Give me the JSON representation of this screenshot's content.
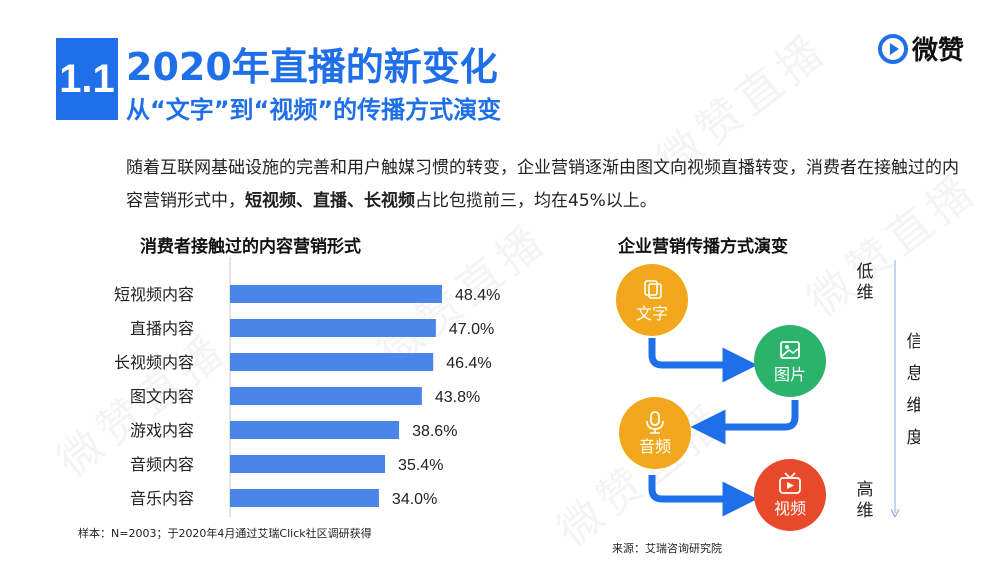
{
  "header": {
    "section_number": "1.1",
    "title": "2020年直播的新变化",
    "subtitle": "从“文字”到“视频”的传播方式演变",
    "brand": "微赞"
  },
  "intro": {
    "part1": "随着互联网基础设施的完善和用户触媒习惯的转变，企业营销逐渐由图文向视频直播转变，消费者在接触过的内容营销形式中，",
    "highlight": "短视频、直播、长视频",
    "part2": "占比包揽前三，均在45%以上。"
  },
  "watermark": "微赞直播",
  "chart_data": {
    "type": "bar",
    "orientation": "horizontal",
    "title": "消费者接触过的内容营销形式",
    "categories": [
      "短视频内容",
      "直播内容",
      "长视频内容",
      "图文内容",
      "游戏内容",
      "音频内容",
      "音乐内容"
    ],
    "values": [
      48.4,
      47.0,
      46.4,
      43.8,
      38.6,
      35.4,
      34.0
    ],
    "value_labels": [
      "48.4%",
      "47.0%",
      "46.4%",
      "43.8%",
      "38.6%",
      "35.4%",
      "34.0%"
    ],
    "xlim": [
      0,
      60
    ],
    "bar_color": "#4a86e8",
    "grid": false
  },
  "note": "样本：N=2003；于2020年4月通过艾瑞Click社区调研获得",
  "flow": {
    "title": "企业营销传播方式演变",
    "nodes": [
      {
        "label": "文字",
        "icon": "text-icon",
        "color": "#f2a81d"
      },
      {
        "label": "图片",
        "icon": "image-icon",
        "color": "#2bb36b"
      },
      {
        "label": "音频",
        "icon": "microphone-icon",
        "color": "#f2a81d"
      },
      {
        "label": "视频",
        "icon": "video-icon",
        "color": "#e8492a"
      }
    ],
    "axis_top": "低维",
    "axis_middle": "信息维度",
    "axis_bottom": "高维",
    "arrow_color": "#1f6fe8"
  },
  "source": "来源：艾瑞咨询研究院"
}
